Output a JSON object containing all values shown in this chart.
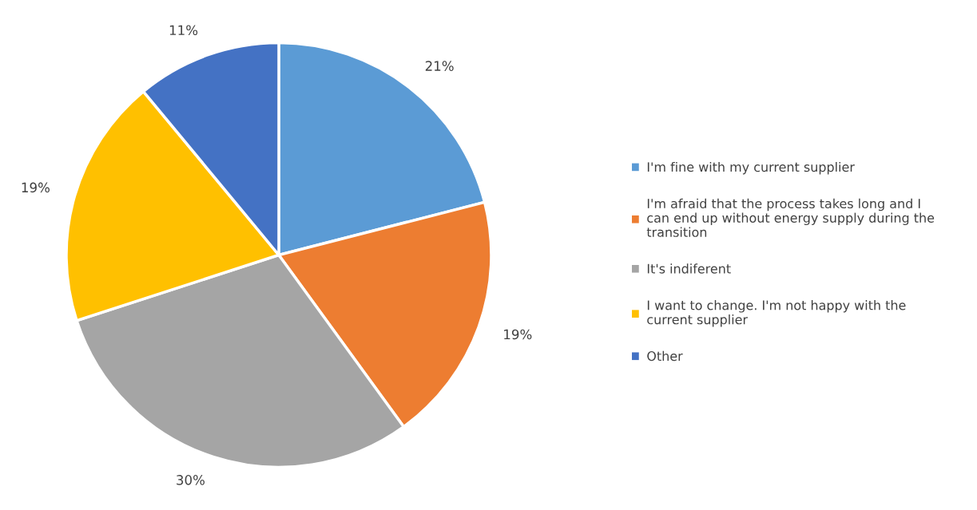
{
  "chart_data": {
    "type": "pie",
    "categories": [
      "I'm fine with my current supplier",
      "I'm afraid that the process takes long and I can end up without energy supply during the transition",
      "It's indiferent",
      "I want to change. I'm not happy with the current supplier",
      "Other"
    ],
    "values": [
      21,
      19,
      30,
      19,
      11
    ],
    "colors": [
      "#5b9bd5",
      "#ed7d31",
      "#a5a5a5",
      "#ffc000",
      "#4472c4"
    ],
    "value_labels": [
      "21%",
      "19%",
      "30%",
      "19%",
      "11%"
    ],
    "legend": "right"
  }
}
